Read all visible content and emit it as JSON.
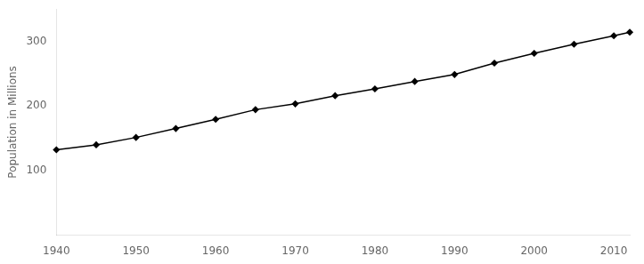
{
  "chart_data": {
    "type": "line",
    "x": [
      1940,
      1945,
      1950,
      1955,
      1960,
      1965,
      1970,
      1975,
      1980,
      1985,
      1990,
      1995,
      2000,
      2005,
      2010,
      2012
    ],
    "values": [
      132.2,
      139.9,
      151.3,
      165.1,
      179.3,
      194.3,
      203.3,
      215.9,
      226.5,
      237.9,
      248.7,
      266.3,
      281.4,
      295.5,
      308.7,
      314.1
    ],
    "ylabel": "Population in Millions",
    "xlim": [
      1940,
      2012
    ],
    "ylim": [
      0,
      350
    ],
    "xticks": [
      1940,
      1950,
      1960,
      1970,
      1980,
      1990,
      2000,
      2010
    ],
    "yticks": [
      100,
      200,
      300
    ],
    "color": "#000000",
    "marker": "diamond",
    "grid": false
  }
}
